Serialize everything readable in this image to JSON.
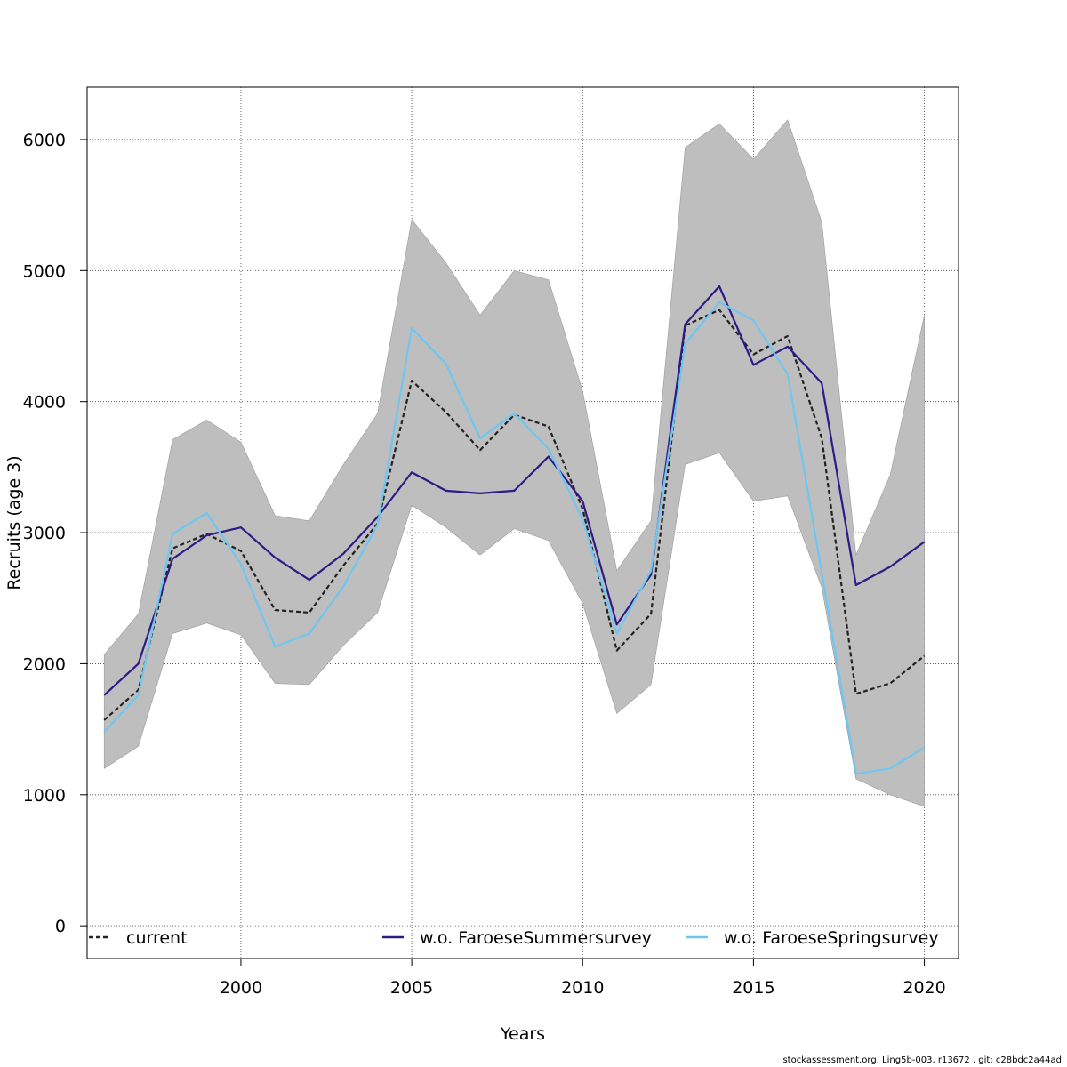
{
  "footer_text": "stockassessment.org, Ling5b-003, r13672 , git: c28bdc2a44ad",
  "chart_data": {
    "type": "line",
    "xlabel": "Years",
    "ylabel": "Recruits (age 3)",
    "xlim": [
      1995.5,
      2021.0
    ],
    "ylim": [
      -250,
      6400
    ],
    "xticks": [
      2000,
      2005,
      2010,
      2015,
      2020
    ],
    "yticks": [
      0,
      1000,
      2000,
      3000,
      4000,
      5000,
      6000
    ],
    "grid": true,
    "legend_position": "bottom",
    "x": [
      1996,
      1997,
      1998,
      1999,
      2000,
      2001,
      2002,
      2003,
      2004,
      2005,
      2006,
      2007,
      2008,
      2009,
      2010,
      2011,
      2012,
      2013,
      2014,
      2015,
      2016,
      2017,
      2018,
      2019,
      2020
    ],
    "band": {
      "color": "#bebebe",
      "upper": [
        2070,
        2380,
        3710,
        3860,
        3690,
        3130,
        3090,
        3520,
        3910,
        5390,
        5060,
        4660,
        5000,
        4930,
        4080,
        2710,
        3090,
        5940,
        6120,
        5850,
        6150,
        5370,
        2830,
        3440,
        4660
      ],
      "lower": [
        1200,
        1370,
        2230,
        2310,
        2220,
        1850,
        1840,
        2140,
        2390,
        3210,
        3040,
        2830,
        3030,
        2940,
        2460,
        1620,
        1840,
        3520,
        3610,
        3240,
        3280,
        2580,
        1120,
        1000,
        910
      ]
    },
    "series": [
      {
        "name": "current",
        "color": "#222222",
        "dash": "5,3",
        "values": [
          1570,
          1800,
          2880,
          2990,
          2860,
          2410,
          2390,
          2750,
          3070,
          4160,
          3920,
          3630,
          3900,
          3810,
          3180,
          2100,
          2380,
          4580,
          4700,
          4360,
          4500,
          3720,
          1770,
          1850,
          2060
        ]
      },
      {
        "name": "w.o. FaroeseSummersurvey",
        "color": "#2e1a87",
        "dash": "",
        "values": [
          1760,
          2000,
          2800,
          2980,
          3040,
          2810,
          2640,
          2840,
          3120,
          3460,
          3320,
          3300,
          3320,
          3580,
          3240,
          2300,
          2680,
          4590,
          4880,
          4280,
          4420,
          4140,
          2600,
          2740,
          2930
        ]
      },
      {
        "name": "w.o. FaroeseSpringsurvey",
        "color": "#6ec7f0",
        "dash": "",
        "values": [
          1480,
          1760,
          2990,
          3150,
          2760,
          2130,
          2230,
          2590,
          3060,
          4560,
          4290,
          3720,
          3910,
          3640,
          3100,
          2230,
          2710,
          4440,
          4760,
          4620,
          4210,
          2690,
          1160,
          1200,
          1360
        ]
      }
    ]
  }
}
